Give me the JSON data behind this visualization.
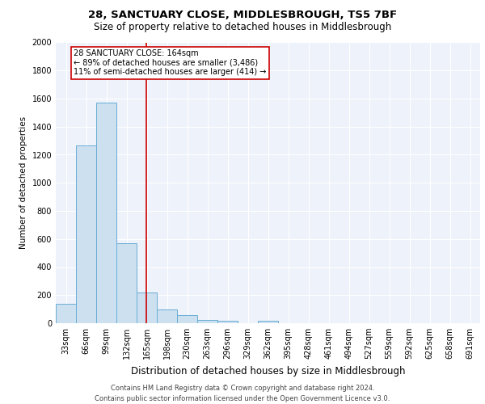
{
  "title": "28, SANCTUARY CLOSE, MIDDLESBROUGH, TS5 7BF",
  "subtitle": "Size of property relative to detached houses in Middlesbrough",
  "xlabel": "Distribution of detached houses by size in Middlesbrough",
  "ylabel": "Number of detached properties",
  "bin_labels": [
    "33sqm",
    "66sqm",
    "99sqm",
    "132sqm",
    "165sqm",
    "198sqm",
    "230sqm",
    "263sqm",
    "296sqm",
    "329sqm",
    "362sqm",
    "395sqm",
    "428sqm",
    "461sqm",
    "494sqm",
    "527sqm",
    "559sqm",
    "592sqm",
    "625sqm",
    "658sqm",
    "691sqm"
  ],
  "bar_values": [
    140,
    1265,
    1570,
    570,
    220,
    100,
    55,
    25,
    15,
    0,
    15,
    0,
    0,
    0,
    0,
    0,
    0,
    0,
    0,
    0,
    0
  ],
  "bar_color": "#cce0f0",
  "bar_edge_color": "#6aaed6",
  "annotation_label": "28 SANCTUARY CLOSE: 164sqm",
  "annotation_line1": "← 89% of detached houses are smaller (3,486)",
  "annotation_line2": "11% of semi-detached houses are larger (414) →",
  "annotation_box_color": "white",
  "annotation_border_color": "#cc0000",
  "vline_color": "#cc0000",
  "vline_x": 3.97,
  "ylim": [
    0,
    2000
  ],
  "yticks": [
    0,
    200,
    400,
    600,
    800,
    1000,
    1200,
    1400,
    1600,
    1800,
    2000
  ],
  "background_color": "#eef2fa",
  "grid_color": "white",
  "footer_line1": "Contains HM Land Registry data © Crown copyright and database right 2024.",
  "footer_line2": "Contains public sector information licensed under the Open Government Licence v3.0.",
  "title_fontsize": 9.5,
  "subtitle_fontsize": 8.5,
  "xlabel_fontsize": 8.5,
  "ylabel_fontsize": 7.5,
  "tick_fontsize": 7,
  "annotation_fontsize": 7,
  "footer_fontsize": 6
}
